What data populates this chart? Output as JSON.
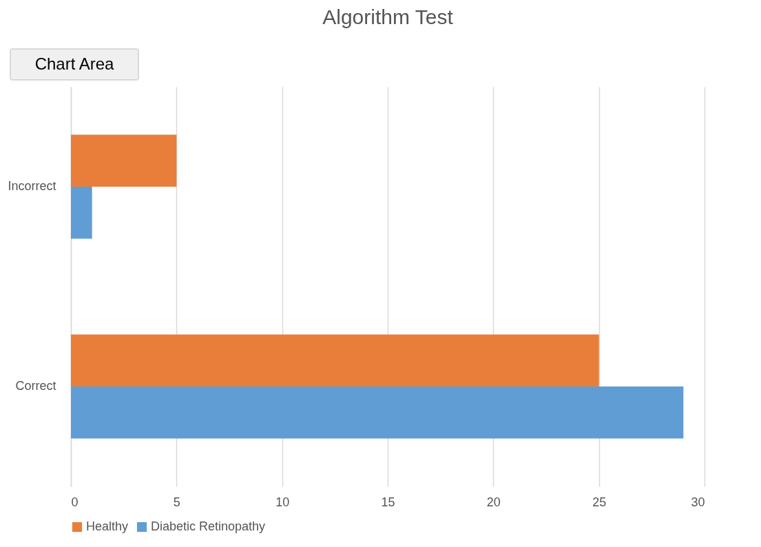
{
  "chart_data": {
    "type": "bar",
    "orientation": "horizontal",
    "title": "Algorithm Test",
    "categories": [
      "Incorrect",
      "Correct"
    ],
    "series": [
      {
        "name": "Healthy",
        "color": "#e97e3a",
        "values": [
          5,
          25
        ]
      },
      {
        "name": "Diabetic Retinopathy",
        "color": "#5f9dd4",
        "values": [
          1,
          29
        ]
      }
    ],
    "xlim": [
      0,
      30
    ],
    "xticks": [
      0,
      5,
      10,
      15,
      20,
      25,
      30
    ],
    "grid": "x",
    "legend": "bottom",
    "annotations": [
      "Chart Area"
    ]
  }
}
